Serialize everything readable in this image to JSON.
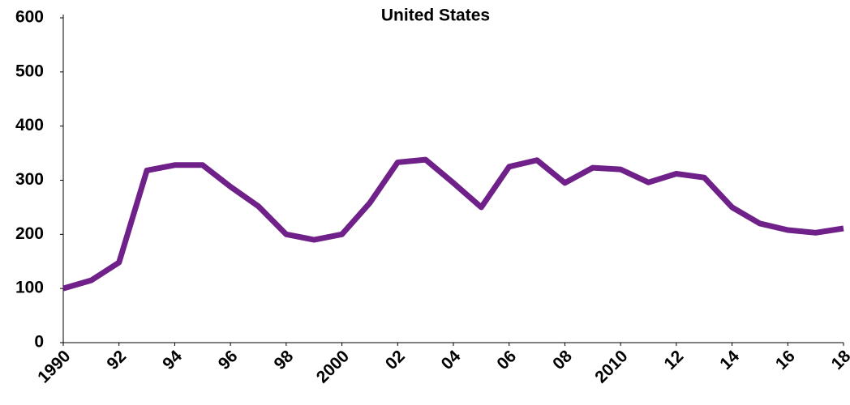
{
  "chart_data": {
    "type": "line",
    "title": "United States",
    "x": [
      1990,
      1991,
      1992,
      1993,
      1994,
      1995,
      1996,
      1997,
      1998,
      1999,
      2000,
      2001,
      2002,
      2003,
      2004,
      2005,
      2006,
      2007,
      2008,
      2009,
      2010,
      2011,
      2012,
      2013,
      2014,
      2015,
      2016,
      2017,
      2018
    ],
    "series": [
      {
        "name": "United States",
        "color": "#6f2089",
        "values": [
          100,
          115,
          148,
          318,
          328,
          328,
          288,
          252,
          200,
          190,
          200,
          258,
          333,
          338,
          295,
          250,
          325,
          337,
          295,
          323,
          320,
          296,
          312,
          305,
          250,
          220,
          208,
          203,
          211
        ]
      }
    ],
    "xlim": [
      1990,
      2018
    ],
    "xticks": [
      1990,
      {
        "value": 1992,
        "label": "92"
      },
      {
        "value": 1994,
        "label": "94"
      },
      {
        "value": 1996,
        "label": "96"
      },
      {
        "value": 1998,
        "label": "98"
      },
      2000,
      {
        "value": 2002,
        "label": "02"
      },
      {
        "value": 2004,
        "label": "04"
      },
      {
        "value": 2006,
        "label": "06"
      },
      {
        "value": 2008,
        "label": "08"
      },
      2010,
      {
        "value": 2012,
        "label": "12"
      },
      {
        "value": 2014,
        "label": "14"
      },
      {
        "value": 2016,
        "label": "16"
      },
      {
        "value": 2018,
        "label": "18"
      }
    ],
    "ylim": [
      0,
      600
    ],
    "yticks": [
      0,
      100,
      200,
      300,
      400,
      500,
      600
    ],
    "grid": false
  }
}
